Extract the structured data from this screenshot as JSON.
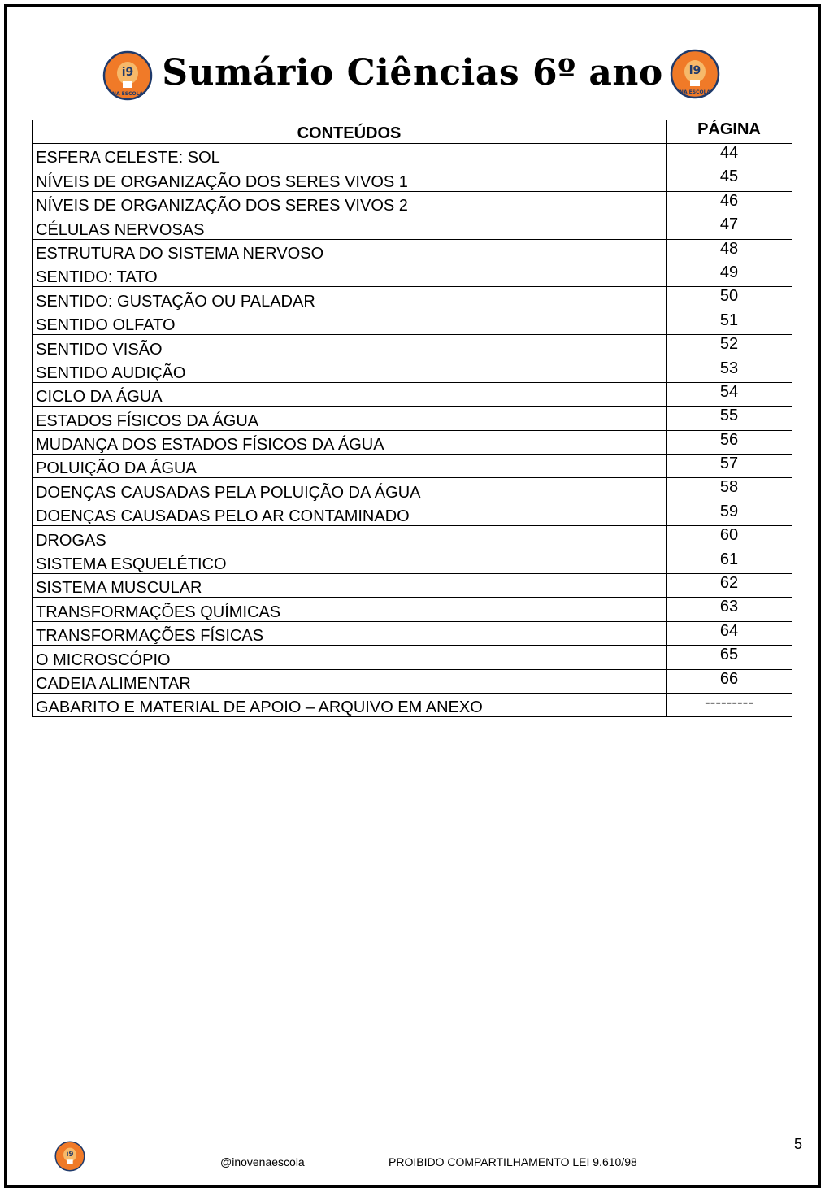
{
  "title": "Sumário Ciências 6º ano",
  "logo": {
    "text_top": "i9",
    "text_bottom": "NA ESCOLA",
    "color": "#f07a28"
  },
  "table": {
    "headers": [
      "CONTEÚDOS",
      "PÁGINA"
    ],
    "rows": [
      {
        "content": "ESFERA CELESTE: SOL",
        "page": "44"
      },
      {
        "content": "NÍVEIS DE ORGANIZAÇÃO DOS SERES VIVOS 1",
        "page": "45"
      },
      {
        "content": "NÍVEIS DE ORGANIZAÇÃO DOS SERES VIVOS 2",
        "page": "46"
      },
      {
        "content": "CÉLULAS NERVOSAS",
        "page": "47"
      },
      {
        "content": "ESTRUTURA DO SISTEMA NERVOSO",
        "page": "48"
      },
      {
        "content": "SENTIDO: TATO",
        "page": "49"
      },
      {
        "content": "SENTIDO: GUSTAÇÃO OU PALADAR",
        "page": "50"
      },
      {
        "content": "SENTIDO OLFATO",
        "page": "51"
      },
      {
        "content": "SENTIDO VISÃO",
        "page": "52"
      },
      {
        "content": "SENTIDO AUDIÇÃO",
        "page": "53"
      },
      {
        "content": "CICLO DA ÁGUA",
        "page": "54"
      },
      {
        "content": "ESTADOS FÍSICOS DA ÁGUA",
        "page": "55"
      },
      {
        "content": "MUDANÇA DOS ESTADOS FÍSICOS DA ÁGUA",
        "page": "56"
      },
      {
        "content": "POLUIÇÃO DA ÁGUA",
        "page": "57"
      },
      {
        "content": "DOENÇAS CAUSADAS PELA POLUIÇÃO DA ÁGUA",
        "page": "58"
      },
      {
        "content": "DOENÇAS CAUSADAS PELO AR CONTAMINADO",
        "page": "59"
      },
      {
        "content": "DROGAS",
        "page": "60"
      },
      {
        "content": "SISTEMA ESQUELÉTICO",
        "page": "61"
      },
      {
        "content": "SISTEMA MUSCULAR",
        "page": "62"
      },
      {
        "content": "TRANSFORMAÇÕES QUÍMICAS",
        "page": "63"
      },
      {
        "content": "TRANSFORMAÇÕES FÍSICAS",
        "page": "64"
      },
      {
        "content": "O MICROSCÓPIO",
        "page": "65"
      },
      {
        "content": "CADEIA ALIMENTAR",
        "page": "66"
      },
      {
        "content": "GABARITO E MATERIAL DE APOIO – ARQUIVO EM ANEXO",
        "page": "---------"
      }
    ]
  },
  "footer": {
    "handle": "@inovenaescola",
    "notice": "PROIBIDO COMPARTILHAMENTO LEI 9.610/98",
    "page_number": "5"
  }
}
